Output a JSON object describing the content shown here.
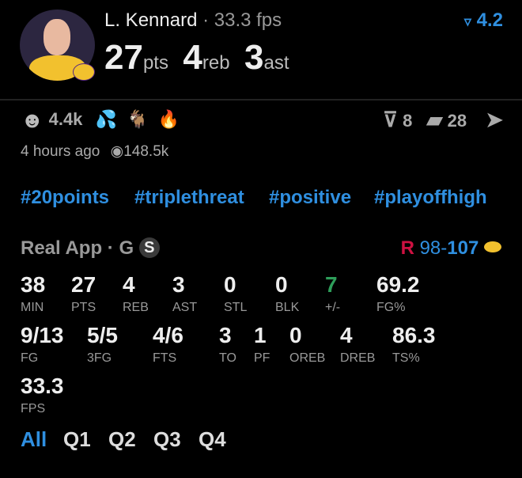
{
  "header": {
    "name": "L. Kennard",
    "fps": "· 33.3 fps",
    "rating": "4.2",
    "pts": "27",
    "pts_label": "pts",
    "reb": "4",
    "reb_label": "reb",
    "ast": "3",
    "ast_label": "ast"
  },
  "reactions": {
    "smile_count": "4.4k",
    "comments": "8",
    "cards": "28",
    "time": "4 hours ago",
    "views": "148.5k"
  },
  "hashtags": [
    "#20points",
    "#triplethreat",
    "#positive",
    "#playoffhigh"
  ],
  "game": {
    "source": "Real App · G",
    "badge": "S",
    "score_away": "98",
    "score_sep": "-",
    "score_home": "107"
  },
  "stats_row1": [
    {
      "v": "38",
      "l": "MIN"
    },
    {
      "v": "27",
      "l": "PTS"
    },
    {
      "v": "4",
      "l": "REB"
    },
    {
      "v": "3",
      "l": "AST"
    },
    {
      "v": "0",
      "l": "STL"
    },
    {
      "v": "0",
      "l": "BLK"
    },
    {
      "v": "7",
      "l": "+/-"
    },
    {
      "v": "69.2",
      "l": "FG%"
    }
  ],
  "stats_row2": [
    {
      "v": "9/13",
      "l": "FG"
    },
    {
      "v": "5/5",
      "l": "3FG"
    },
    {
      "v": "4/6",
      "l": "FTS"
    },
    {
      "v": "3",
      "l": "TO"
    },
    {
      "v": "1",
      "l": "PF"
    },
    {
      "v": "0",
      "l": "OREB"
    },
    {
      "v": "4",
      "l": "DREB"
    },
    {
      "v": "86.3",
      "l": "TS%"
    }
  ],
  "stats_row3": [
    {
      "v": "33.3",
      "l": "FPS"
    }
  ],
  "tabs": [
    "All",
    "Q1",
    "Q2",
    "Q3",
    "Q4"
  ],
  "colors": {
    "accent": "#2f8fe0",
    "positive": "#2e9e5a",
    "background": "#000000"
  }
}
